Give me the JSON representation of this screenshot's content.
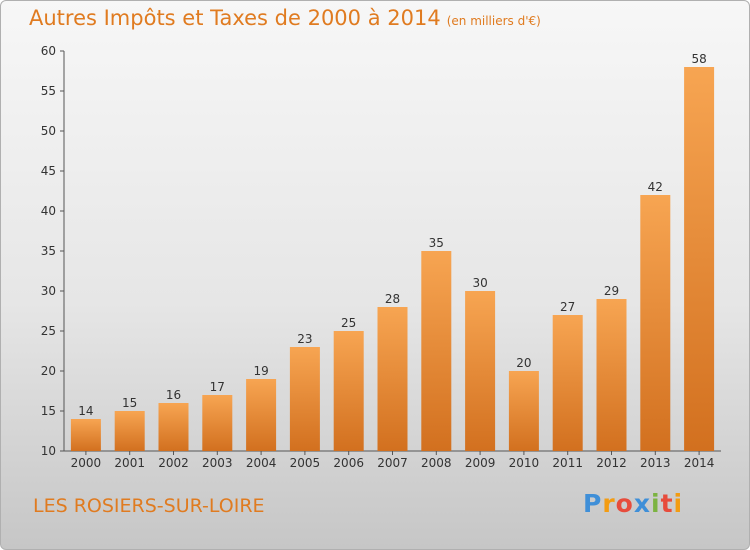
{
  "header": {
    "title": "Autres Impôts et Taxes de 2000 à 2014",
    "subtitle": "(en milliers d'€)"
  },
  "footer": {
    "location": "LES ROSIERS-SUR-LOIRE",
    "brand": "Proxiti"
  },
  "colors": {
    "bar_light": "#f7a552",
    "bar_dark": "#d2701f",
    "title": "#e07b20"
  },
  "chart_data": {
    "type": "bar",
    "categories": [
      "2000",
      "2001",
      "2002",
      "2003",
      "2004",
      "2005",
      "2006",
      "2007",
      "2008",
      "2009",
      "2010",
      "2011",
      "2012",
      "2013",
      "2014"
    ],
    "values": [
      14,
      15,
      16,
      17,
      19,
      23,
      25,
      28,
      35,
      30,
      20,
      27,
      29,
      42,
      58
    ],
    "title": "Autres Impôts et Taxes de 2000 à 2014",
    "subtitle": "(en milliers d'€)",
    "xlabel": "",
    "ylabel": "",
    "ylim": [
      10,
      60
    ],
    "yticks": [
      10,
      15,
      20,
      25,
      30,
      35,
      40,
      45,
      50,
      55,
      60
    ],
    "grid": false,
    "data_labels": true
  }
}
